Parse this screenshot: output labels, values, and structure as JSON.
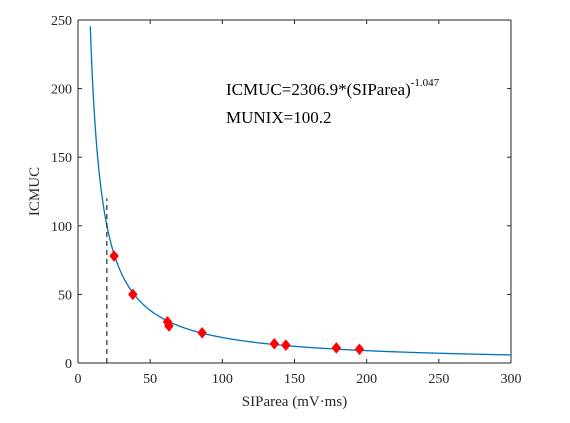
{
  "chart_data": {
    "type": "scatter",
    "xlabel": "SIParea (mV·ms)",
    "ylabel": "ICMUC",
    "xlim": [
      0,
      300
    ],
    "ylim": [
      0,
      250
    ],
    "x_ticks": [
      "0",
      "50",
      "100",
      "150",
      "200",
      "250",
      "300"
    ],
    "y_ticks": [
      "0",
      "50",
      "100",
      "150",
      "200",
      "250"
    ],
    "grid": false,
    "points": {
      "x": [
        25,
        38,
        62,
        63,
        86,
        136,
        144,
        179,
        195
      ],
      "y": [
        78,
        50,
        30,
        27,
        22,
        14,
        13,
        11,
        10
      ],
      "color": "#ff0000"
    },
    "fit_curve": {
      "coefficient": 2306.9,
      "exponent": -1.047,
      "x_start": 8.5,
      "x_end": 300,
      "color": "#0072bd"
    },
    "marker_line": {
      "x": 20,
      "y_top": 120,
      "color": "#000000"
    },
    "annotations": {
      "formula_prefix": "ICMUC=2306.9*(SIParea)",
      "formula_exponent": "-1.047",
      "munix": "MUNIX=100.2"
    }
  }
}
